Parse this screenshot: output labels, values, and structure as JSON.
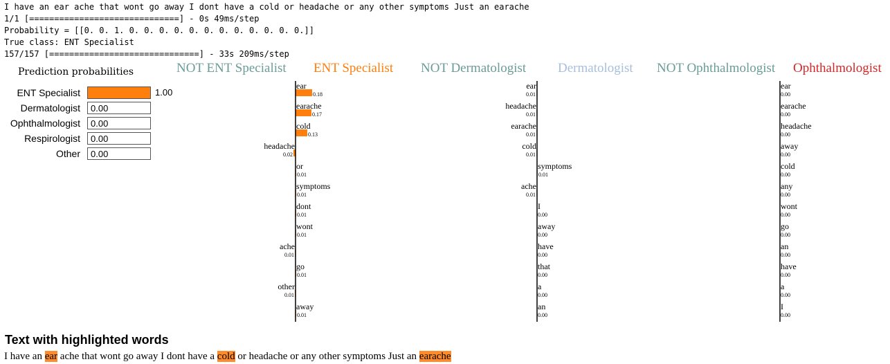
{
  "console": {
    "lines": [
      "I have an ear ache that wont go away I dont have a cold or headache or any other symptoms Just an earache",
      "1/1 [==============================] - 0s 49ms/step",
      "Probability = [[0. 0. 1. 0. 0. 0. 0. 0. 0. 0. 0. 0. 0. 0. 0.]]",
      "True class: ENT Specialist",
      "157/157 [==============================] - 33s 209ms/step"
    ]
  },
  "prediction": {
    "title": "Prediction probabilities",
    "items": [
      {
        "label": "ENT Specialist",
        "value": 1.0,
        "value_text": "1.00"
      },
      {
        "label": "Dermatologist",
        "value": 0.0,
        "value_text": "0.00"
      },
      {
        "label": "Ophthalmologist",
        "value": 0.0,
        "value_text": "0.00"
      },
      {
        "label": "Respirologist",
        "value": 0.0,
        "value_text": "0.00"
      },
      {
        "label": "Other",
        "value": 0.0,
        "value_text": "0.00"
      }
    ]
  },
  "colors": {
    "orange": "#ff7f0e",
    "teal": "#6a9c98",
    "light_blue": "#a8bfdc",
    "red": "#d62728"
  },
  "chart_data": [
    {
      "type": "bar",
      "title": "ENT Specialist",
      "negative_label": "NOT ENT Specialist",
      "positive_label": "ENT Specialist",
      "bars": [
        {
          "word": "ear",
          "value": 0.18,
          "value_text": "0.18"
        },
        {
          "word": "earache",
          "value": 0.17,
          "value_text": "0.17"
        },
        {
          "word": "cold",
          "value": 0.13,
          "value_text": "0.13"
        },
        {
          "word": "headache",
          "value": -0.02,
          "value_text": "0.02"
        },
        {
          "word": "or",
          "value": 0.01,
          "value_text": "0.01"
        },
        {
          "word": "symptoms",
          "value": 0.01,
          "value_text": "0.01"
        },
        {
          "word": "dont",
          "value": 0.01,
          "value_text": "0.01"
        },
        {
          "word": "wont",
          "value": 0.01,
          "value_text": "0.01"
        },
        {
          "word": "ache",
          "value": -0.01,
          "value_text": "0.01"
        },
        {
          "word": "go",
          "value": 0.01,
          "value_text": "0.01"
        },
        {
          "word": "other",
          "value": -0.01,
          "value_text": "0.01"
        },
        {
          "word": "away",
          "value": 0.01,
          "value_text": "0.01"
        }
      ]
    },
    {
      "type": "bar",
      "title": "Dermatologist",
      "negative_label": "NOT Dermatologist",
      "positive_label": "Dermatologist",
      "bars": [
        {
          "word": "ear",
          "value": -0.01,
          "value_text": "0.01"
        },
        {
          "word": "headache",
          "value": -0.01,
          "value_text": "0.01"
        },
        {
          "word": "earache",
          "value": -0.01,
          "value_text": "0.01"
        },
        {
          "word": "cold",
          "value": -0.01,
          "value_text": "0.01"
        },
        {
          "word": "symptoms",
          "value": 0.01,
          "value_text": "0.01"
        },
        {
          "word": "ache",
          "value": -0.01,
          "value_text": "0.01"
        },
        {
          "word": "I",
          "value": -0.0,
          "value_text": "0.00"
        },
        {
          "word": "away",
          "value": 0.0,
          "value_text": "0.00"
        },
        {
          "word": "have",
          "value": -0.0,
          "value_text": "0.00"
        },
        {
          "word": "that",
          "value": -0.0,
          "value_text": "0.00"
        },
        {
          "word": "a",
          "value": -0.0,
          "value_text": "0.00"
        },
        {
          "word": "an",
          "value": -0.0,
          "value_text": "0.00"
        }
      ]
    },
    {
      "type": "bar",
      "title": "Ophthalmologist",
      "negative_label": "NOT Ophthalmologist",
      "positive_label": "Ophthalmologist",
      "bars": [
        {
          "word": "ear",
          "value": -0.0,
          "value_text": "0.00"
        },
        {
          "word": "earache",
          "value": -0.0,
          "value_text": "0.00"
        },
        {
          "word": "headache",
          "value": -0.0,
          "value_text": "0.00"
        },
        {
          "word": "away",
          "value": 0.0,
          "value_text": "0.00"
        },
        {
          "word": "cold",
          "value": -0.0,
          "value_text": "0.00"
        },
        {
          "word": "any",
          "value": -0.0,
          "value_text": "0.00"
        },
        {
          "word": "wont",
          "value": -0.0,
          "value_text": "0.00"
        },
        {
          "word": "go",
          "value": -0.0,
          "value_text": "0.00"
        },
        {
          "word": "an",
          "value": -0.0,
          "value_text": "0.00"
        },
        {
          "word": "have",
          "value": -0.0,
          "value_text": "0.00"
        },
        {
          "word": "a",
          "value": -0.0,
          "value_text": "0.00"
        },
        {
          "word": "I",
          "value": -0.0,
          "value_text": "0.00"
        }
      ]
    }
  ],
  "highlighted": {
    "title": "Text with highlighted words",
    "segments": [
      {
        "text": "I have an ",
        "hl": false
      },
      {
        "text": "ear",
        "hl": true
      },
      {
        "text": " ache that wont go away I dont have a ",
        "hl": false
      },
      {
        "text": "cold",
        "hl": true
      },
      {
        "text": " or headache or any other symptoms Just an ",
        "hl": false
      },
      {
        "text": "earache",
        "hl": true
      }
    ]
  }
}
